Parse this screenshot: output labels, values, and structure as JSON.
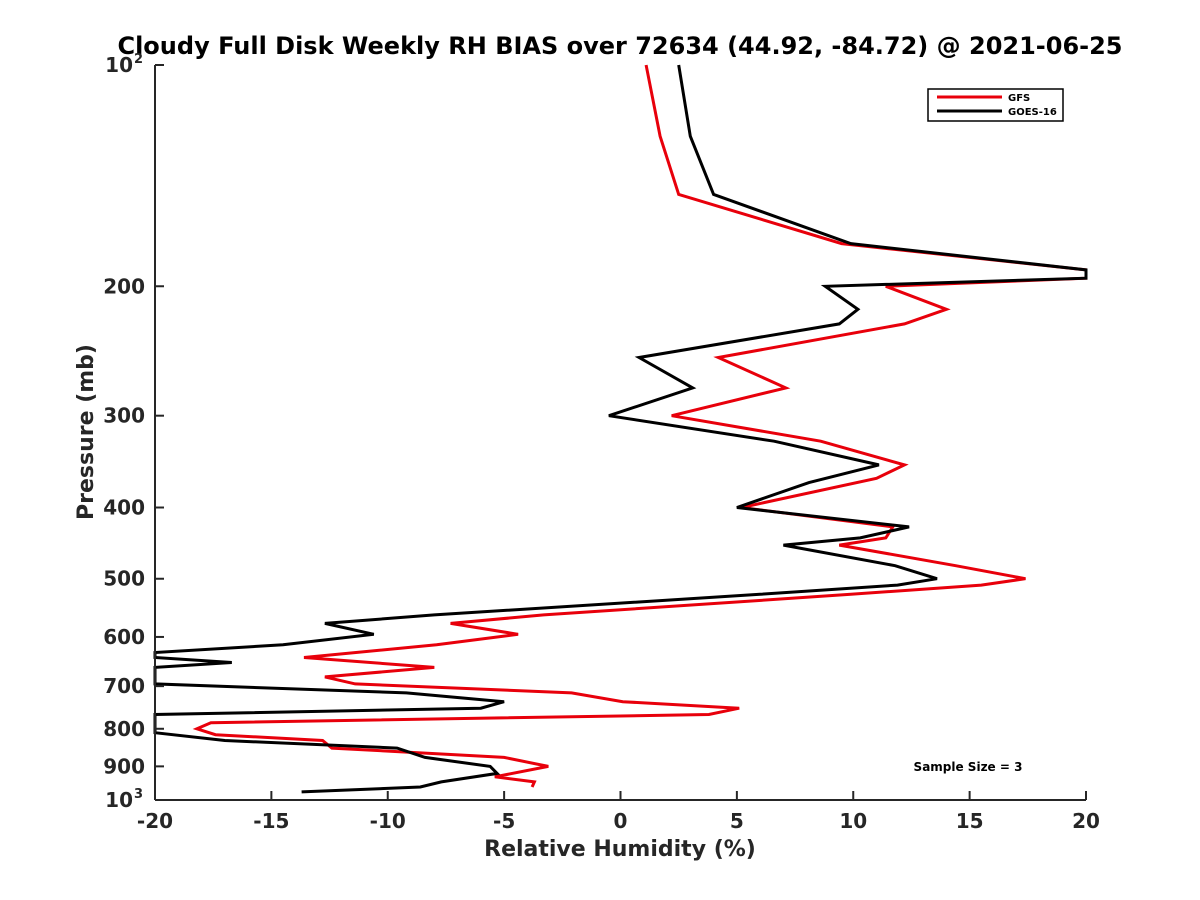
{
  "chart_data": {
    "type": "line",
    "title": "Cloudy Full Disk Weekly RH BIAS over 72634 (44.92, -84.72) @ 2021-06-25",
    "xlabel": "Relative Humidity (%)",
    "ylabel": "Pressure (mb)",
    "xlim": [
      -20,
      20
    ],
    "ylim": [
      100,
      1000
    ],
    "y_scale": "log",
    "y_reversed": true,
    "grid": false,
    "legend_position": "top-right",
    "x_ticks": [
      "-20",
      "-15",
      "-10",
      "-5",
      "0",
      "5",
      "10",
      "15",
      "20"
    ],
    "y_ticks": [
      {
        "base": "10",
        "exp": "2"
      },
      {
        "label": "200"
      },
      {
        "label": "300"
      },
      {
        "label": "400"
      },
      {
        "label": "500"
      },
      {
        "label": "600"
      },
      {
        "label": "700"
      },
      {
        "label": "800"
      },
      {
        "label": "900"
      },
      {
        "base": "10",
        "exp": "3"
      }
    ],
    "annotation": "Sample Size = 3",
    "series": [
      {
        "name": "GFS",
        "color": "#e8000b",
        "points": [
          [
            1.1,
            100
          ],
          [
            1.7,
            125
          ],
          [
            2.5,
            150
          ],
          [
            9.5,
            175
          ],
          [
            20,
            190
          ],
          [
            20,
            195
          ],
          [
            11.4,
            200
          ],
          [
            14,
            215
          ],
          [
            12.2,
            225
          ],
          [
            4.2,
            250
          ],
          [
            7.1,
            275
          ],
          [
            2.2,
            300
          ],
          [
            8.6,
            325
          ],
          [
            12.2,
            350
          ],
          [
            11,
            365
          ],
          [
            5.2,
            400
          ],
          [
            11.7,
            425
          ],
          [
            11.4,
            440
          ],
          [
            9.4,
            450
          ],
          [
            14.4,
            480
          ],
          [
            17.4,
            500
          ],
          [
            15.5,
            510
          ],
          [
            9.9,
            525
          ],
          [
            -3.3,
            560
          ],
          [
            -7.3,
            575
          ],
          [
            -4.4,
            595
          ],
          [
            -7.9,
            615
          ],
          [
            -13.6,
            640
          ],
          [
            -8,
            660
          ],
          [
            -12.7,
            680
          ],
          [
            -11.4,
            695
          ],
          [
            -2.1,
            715
          ],
          [
            0.1,
            735
          ],
          [
            5.1,
            750
          ],
          [
            3.8,
            765
          ],
          [
            -17.6,
            785
          ],
          [
            -18.2,
            800
          ],
          [
            -17.4,
            815
          ],
          [
            -12.8,
            830
          ],
          [
            -12.4,
            850
          ],
          [
            -5,
            875
          ],
          [
            -3.1,
            900
          ],
          [
            -5.4,
            930
          ],
          [
            -3.7,
            945
          ],
          [
            -3.8,
            960
          ]
        ]
      },
      {
        "name": "GOES-16",
        "color": "#000000",
        "points": [
          [
            2.5,
            100
          ],
          [
            3,
            125
          ],
          [
            4,
            150
          ],
          [
            9.9,
            175
          ],
          [
            20,
            190
          ],
          [
            20,
            195
          ],
          [
            8.8,
            200
          ],
          [
            10.2,
            215
          ],
          [
            9.4,
            225
          ],
          [
            0.8,
            250
          ],
          [
            3.1,
            275
          ],
          [
            -0.5,
            300
          ],
          [
            6.6,
            325
          ],
          [
            11.1,
            350
          ],
          [
            8.1,
            370
          ],
          [
            5,
            400
          ],
          [
            12.4,
            425
          ],
          [
            10.3,
            440
          ],
          [
            7,
            450
          ],
          [
            11.8,
            480
          ],
          [
            13.6,
            500
          ],
          [
            11.9,
            510
          ],
          [
            6,
            525
          ],
          [
            -8,
            560
          ],
          [
            -12.7,
            575
          ],
          [
            -10.6,
            595
          ],
          [
            -14.5,
            615
          ],
          [
            -20,
            630
          ],
          [
            -20,
            640
          ],
          [
            -16.7,
            650
          ],
          [
            -20,
            660
          ],
          [
            -20,
            695
          ],
          [
            -9.2,
            715
          ],
          [
            -5,
            735
          ],
          [
            -6,
            750
          ],
          [
            -20,
            765
          ],
          [
            -20,
            790
          ],
          [
            -20,
            810
          ],
          [
            -17,
            830
          ],
          [
            -9.6,
            850
          ],
          [
            -8.4,
            875
          ],
          [
            -5.6,
            900
          ],
          [
            -5.3,
            920
          ],
          [
            -7.7,
            945
          ],
          [
            -8.6,
            960
          ],
          [
            -13.7,
            975
          ]
        ]
      }
    ]
  }
}
